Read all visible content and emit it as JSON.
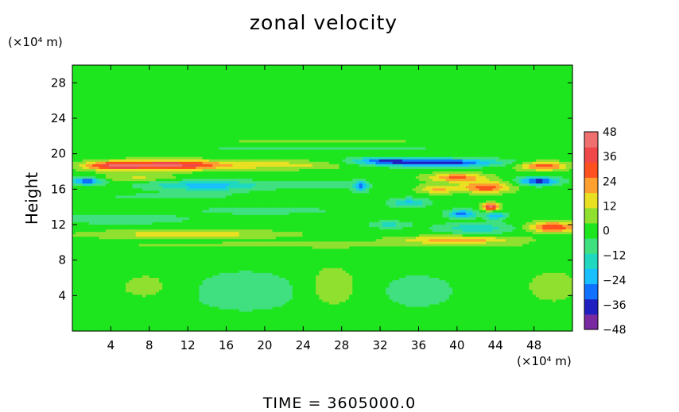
{
  "chart_data": {
    "type": "heatmap",
    "title": "zonal velocity",
    "ylabel": "Height",
    "y_unit_label": "(×10⁴ m)",
    "x_unit_label": "(×10⁴ m)",
    "footer": "TIME = 3605000.0",
    "x_range": [
      0,
      52
    ],
    "y_range": [
      0,
      30
    ],
    "x_ticks": [
      4,
      8,
      12,
      16,
      20,
      24,
      28,
      32,
      36,
      40,
      44,
      48
    ],
    "y_ticks": [
      4,
      8,
      12,
      16,
      20,
      24,
      28
    ],
    "colorbar": {
      "min": -48,
      "max": 48,
      "ticks": [
        48,
        36,
        24,
        12,
        0,
        -12,
        -24,
        -36,
        -48
      ],
      "colors": [
        "#7a2aa0",
        "#2020c0",
        "#1070ff",
        "#18c0ff",
        "#20d8c0",
        "#40e080",
        "#1ee61e",
        "#90e030",
        "#e8e020",
        "#ffa030",
        "#ff5020",
        "#f04848",
        "#f07070"
      ]
    },
    "field": {
      "background": 0,
      "features": [
        {
          "x": 10,
          "y": 18.7,
          "sx": 6,
          "sy": 0.55,
          "value": 42
        },
        {
          "x": 4,
          "y": 18.6,
          "sx": 3,
          "sy": 0.5,
          "value": 26
        },
        {
          "x": 49,
          "y": 18.6,
          "sx": 2.5,
          "sy": 0.5,
          "value": 30
        },
        {
          "x": 22,
          "y": 18.7,
          "sx": 6,
          "sy": 0.5,
          "value": 14
        },
        {
          "x": 38,
          "y": 19.0,
          "sx": 6,
          "sy": 0.45,
          "value": -40
        },
        {
          "x": 32,
          "y": 19.2,
          "sx": 3,
          "sy": 0.4,
          "value": -22
        },
        {
          "x": 1.5,
          "y": 16.9,
          "sx": 1.5,
          "sy": 0.4,
          "value": -34
        },
        {
          "x": 48.5,
          "y": 16.9,
          "sx": 2,
          "sy": 0.45,
          "value": -38
        },
        {
          "x": 14,
          "y": 16.4,
          "sx": 6,
          "sy": 0.6,
          "value": -22
        },
        {
          "x": 7,
          "y": 17.3,
          "sx": 4,
          "sy": 0.4,
          "value": 12
        },
        {
          "x": 40,
          "y": 17.3,
          "sx": 3,
          "sy": 0.5,
          "value": 28
        },
        {
          "x": 43,
          "y": 16.2,
          "sx": 2.5,
          "sy": 0.6,
          "value": 32
        },
        {
          "x": 38,
          "y": 16.0,
          "sx": 2,
          "sy": 0.5,
          "value": 20
        },
        {
          "x": 43.5,
          "y": 14.0,
          "sx": 0.8,
          "sy": 0.4,
          "value": 46
        },
        {
          "x": 40.5,
          "y": 13.2,
          "sx": 1.5,
          "sy": 0.45,
          "value": -30
        },
        {
          "x": 44,
          "y": 13.0,
          "sx": 1,
          "sy": 0.4,
          "value": -26
        },
        {
          "x": 35,
          "y": 14.5,
          "sx": 2,
          "sy": 0.5,
          "value": -20
        },
        {
          "x": 30,
          "y": 16.3,
          "sx": 0.7,
          "sy": 0.6,
          "value": -30
        },
        {
          "x": 33,
          "y": 12.0,
          "sx": 2,
          "sy": 0.4,
          "value": -14
        },
        {
          "x": 42,
          "y": 11.6,
          "sx": 4,
          "sy": 0.6,
          "value": -16
        },
        {
          "x": 40,
          "y": 10.3,
          "sx": 6,
          "sy": 0.4,
          "value": 24
        },
        {
          "x": 50,
          "y": 11.7,
          "sx": 2.5,
          "sy": 0.6,
          "value": 34
        },
        {
          "x": 12,
          "y": 10.9,
          "sx": 10,
          "sy": 0.5,
          "value": 16
        },
        {
          "x": 5,
          "y": 12.6,
          "sx": 8,
          "sy": 0.6,
          "value": -8
        },
        {
          "x": 20,
          "y": 13.6,
          "sx": 8,
          "sy": 0.5,
          "value": -7
        },
        {
          "x": 10,
          "y": 15.2,
          "sx": 10,
          "sy": 0.4,
          "value": -5
        },
        {
          "x": 26,
          "y": 16.5,
          "sx": 4,
          "sy": 0.5,
          "value": -9
        },
        {
          "x": 26,
          "y": 9.7,
          "sx": 20,
          "sy": 0.3,
          "value": 9
        },
        {
          "x": 26,
          "y": 20.7,
          "sx": 26,
          "sy": 0.3,
          "value": -5
        },
        {
          "x": 26,
          "y": 21.3,
          "sx": 26,
          "sy": 0.25,
          "value": 5
        },
        {
          "x": 18,
          "y": 4.5,
          "sx": 7,
          "sy": 2.5,
          "value": -8
        },
        {
          "x": 36,
          "y": 4.5,
          "sx": 5,
          "sy": 2.5,
          "value": -6
        },
        {
          "x": 27,
          "y": 5.0,
          "sx": 3,
          "sy": 2.5,
          "value": 9
        },
        {
          "x": 8,
          "y": 5.0,
          "sx": 4,
          "sy": 2,
          "value": 6
        },
        {
          "x": 50,
          "y": 5.0,
          "sx": 3,
          "sy": 2,
          "value": 7
        }
      ]
    }
  }
}
